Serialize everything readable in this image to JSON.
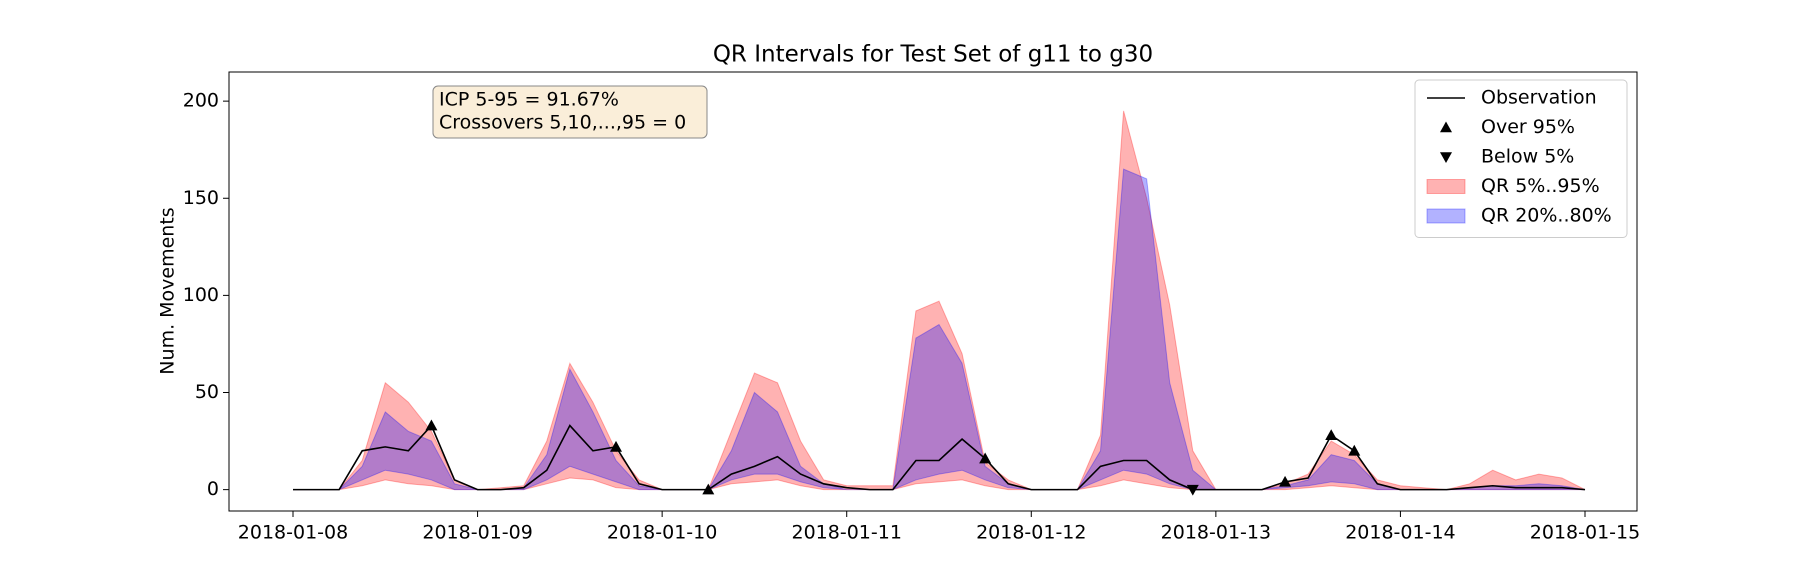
{
  "chart_data": {
    "type": "line",
    "title": "QR Intervals for Test Set of g11 to g30",
    "y_label": "Num. Movements",
    "annotation": [
      "ICP 5-95 = 91.67%",
      "Crossovers 5,10,...,95 = 0"
    ],
    "categories": [
      "2018-01-08",
      null,
      null,
      null,
      null,
      null,
      null,
      null,
      "2018-01-09",
      null,
      null,
      null,
      null,
      null,
      null,
      null,
      "2018-01-10",
      null,
      null,
      null,
      null,
      null,
      null,
      null,
      "2018-01-11",
      null,
      null,
      null,
      null,
      null,
      null,
      null,
      "2018-01-12",
      null,
      null,
      null,
      null,
      null,
      null,
      null,
      "2018-01-13",
      null,
      null,
      null,
      null,
      null,
      null,
      null,
      "2018-01-14",
      null,
      null,
      null,
      null,
      null,
      null,
      null,
      "2018-01-15"
    ],
    "ylim": [
      -11,
      215
    ],
    "yticks": [
      0,
      50,
      100,
      150,
      200
    ],
    "legend": "upper right",
    "series": [
      {
        "name": "Observation",
        "kind": "line",
        "color": "#000000",
        "values": [
          0,
          0,
          0,
          20,
          22,
          20,
          33,
          5,
          0,
          0,
          1,
          10,
          33,
          20,
          22,
          3,
          0,
          0,
          0,
          8,
          12,
          17,
          8,
          3,
          1,
          0,
          0,
          15,
          15,
          26,
          16,
          3,
          0,
          0,
          0,
          12,
          15,
          15,
          5,
          0,
          0,
          0,
          0,
          4,
          6,
          28,
          20,
          3,
          0,
          0,
          0,
          1,
          2,
          1,
          1,
          1,
          0
        ]
      },
      {
        "name": "Over 95%",
        "kind": "marker",
        "marker": "up",
        "color": "#000000",
        "values": [
          null,
          null,
          null,
          null,
          null,
          null,
          33,
          null,
          null,
          null,
          null,
          null,
          null,
          null,
          22,
          null,
          null,
          null,
          0,
          null,
          null,
          null,
          null,
          null,
          null,
          null,
          null,
          null,
          null,
          null,
          16,
          null,
          null,
          null,
          null,
          null,
          null,
          null,
          null,
          null,
          null,
          null,
          null,
          4,
          null,
          28,
          20,
          null,
          null,
          null,
          null,
          null,
          null,
          null,
          null,
          null,
          null
        ]
      },
      {
        "name": "Below 5%",
        "kind": "marker",
        "marker": "down",
        "color": "#000000",
        "values": [
          null,
          null,
          null,
          null,
          null,
          null,
          null,
          null,
          null,
          null,
          null,
          null,
          null,
          null,
          null,
          null,
          null,
          null,
          null,
          null,
          null,
          null,
          null,
          null,
          null,
          null,
          null,
          null,
          null,
          null,
          null,
          null,
          null,
          null,
          null,
          null,
          null,
          null,
          null,
          0,
          null,
          null,
          null,
          null,
          null,
          null,
          null,
          null,
          null,
          null,
          null,
          null,
          null,
          null,
          null,
          null,
          null
        ]
      },
      {
        "name": "QR 5%..95%",
        "kind": "band",
        "color": "#ff0000",
        "alpha": 0.3,
        "lower": [
          0,
          0,
          0,
          2,
          5,
          3,
          2,
          0,
          0,
          0,
          0,
          3,
          6,
          5,
          1,
          0,
          0,
          0,
          0,
          3,
          4,
          5,
          2,
          0,
          0,
          0,
          0,
          3,
          4,
          5,
          2,
          0,
          0,
          0,
          0,
          2,
          5,
          3,
          1,
          0,
          0,
          0,
          0,
          0,
          1,
          2,
          1,
          0,
          0,
          0,
          0,
          0,
          0,
          0,
          0,
          0,
          0
        ],
        "upper": [
          0,
          0,
          0,
          15,
          55,
          45,
          30,
          5,
          0,
          1,
          2,
          25,
          65,
          45,
          20,
          5,
          0,
          0,
          0,
          30,
          60,
          55,
          25,
          5,
          2,
          2,
          2,
          92,
          97,
          70,
          14,
          5,
          0,
          0,
          0,
          28,
          195,
          150,
          95,
          20,
          0,
          0,
          0,
          3,
          8,
          25,
          18,
          5,
          2,
          1,
          0,
          3,
          10,
          5,
          8,
          6,
          0
        ]
      },
      {
        "name": "QR 20%..80%",
        "kind": "band",
        "color": "#0000ff",
        "alpha": 0.3,
        "lower": [
          0,
          0,
          0,
          5,
          10,
          8,
          5,
          0,
          0,
          0,
          0,
          5,
          12,
          8,
          4,
          0,
          0,
          0,
          0,
          5,
          8,
          8,
          4,
          1,
          0,
          0,
          0,
          5,
          8,
          10,
          5,
          1,
          0,
          0,
          0,
          5,
          10,
          8,
          3,
          0,
          0,
          0,
          0,
          1,
          2,
          4,
          3,
          0,
          0,
          0,
          0,
          0,
          0,
          0,
          0,
          0,
          0
        ],
        "upper": [
          0,
          0,
          0,
          12,
          40,
          30,
          25,
          3,
          0,
          0,
          1,
          18,
          62,
          40,
          15,
          2,
          0,
          0,
          0,
          20,
          50,
          40,
          12,
          3,
          0,
          0,
          0,
          78,
          85,
          65,
          12,
          3,
          0,
          0,
          0,
          20,
          165,
          160,
          55,
          10,
          0,
          0,
          0,
          2,
          5,
          18,
          15,
          3,
          0,
          0,
          0,
          1,
          2,
          2,
          3,
          2,
          0
        ]
      }
    ]
  }
}
